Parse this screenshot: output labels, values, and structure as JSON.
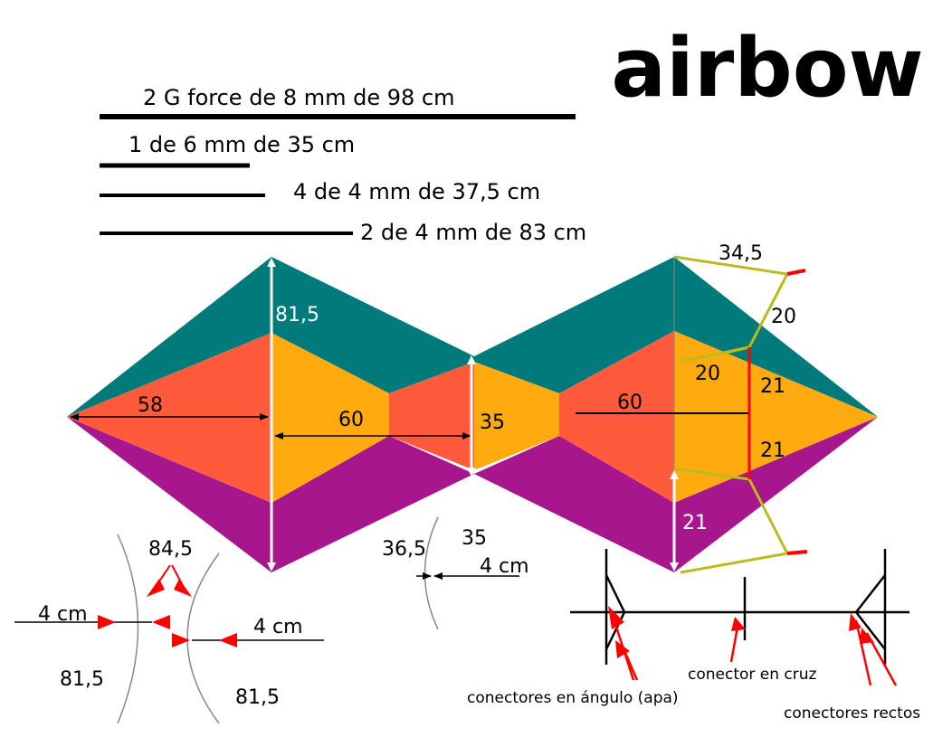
{
  "title": "airbow",
  "spars": [
    "2 G force de 8 mm de 98 cm",
    "1 de 6 mm de 35 cm",
    "4 de 4 mm de 37,5 cm",
    "2 de 4 mm de 83 cm"
  ],
  "dimensions": {
    "left_height": "81,5",
    "left_half_width": "58",
    "left_center": "60",
    "middle": "35",
    "right_center": "60",
    "right_top": "34,5",
    "right_diag": "20",
    "right_inner": "20",
    "right_upper": "21",
    "right_lower": "21",
    "right_bottom": "21"
  },
  "bow_details": {
    "chord_a": "84,5",
    "depth_left": "4 cm",
    "depth_right": "4 cm",
    "height_left": "81,5",
    "height_right": "81,5",
    "small_chord": "36,5",
    "small_height": "35",
    "small_depth": "4 cm"
  },
  "connectors": {
    "angle": "conectores en ángulo (apa)",
    "cross": "conector en cruz",
    "straight": "conectores  rectos"
  },
  "colors": {
    "teal": "#007A7A",
    "orange_red": "#FF5A3C",
    "amber": "#FFAA0F",
    "purple": "#A8168E",
    "olive": "#B8BC1E",
    "arrow_red": "#FF0000"
  }
}
